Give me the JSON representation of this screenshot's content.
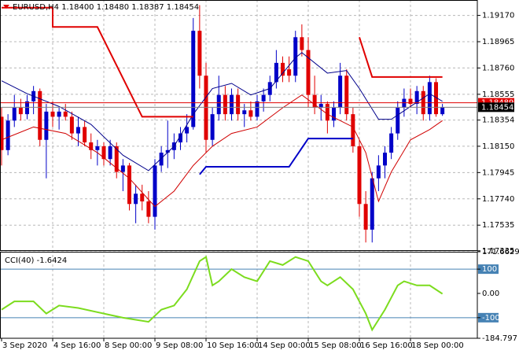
{
  "chart_data": [
    {
      "type": "candlestick",
      "title": "EURUSD,H4  1.18400 1.18480 1.18387 1.18454",
      "up_color": "#0000c8",
      "down_color": "#e00000",
      "categories": [
        "3 Sep 2020",
        null,
        null,
        null,
        null,
        null,
        null,
        null,
        "4 Sep 16:00",
        null,
        null,
        null,
        null,
        null,
        null,
        null,
        "8 Sep 00:00",
        null,
        null,
        null,
        null,
        null,
        null,
        null,
        "9 Sep 08:00",
        null,
        null,
        null,
        null,
        null,
        null,
        null,
        "10 Sep 16:00",
        null,
        null,
        null,
        null,
        null,
        null,
        null,
        "14 Sep 00:00",
        null,
        null,
        null,
        null,
        null,
        null,
        null,
        "15 Sep 08:00",
        null,
        null,
        null,
        null,
        null,
        null,
        null,
        "16 Sep 16:00",
        null,
        null,
        null,
        null,
        null,
        null,
        null,
        "18 Sep 00:00",
        null,
        null,
        null,
        null,
        null
      ],
      "ohlc": [
        [
          1.1838,
          1.1845,
          1.18,
          1.1812
        ],
        [
          1.1812,
          1.184,
          1.1808,
          1.1835
        ],
        [
          1.1835,
          1.1855,
          1.183,
          1.1845
        ],
        [
          1.1845,
          1.1852,
          1.1835,
          1.184
        ],
        [
          1.184,
          1.1855,
          1.1836,
          1.185
        ],
        [
          1.185,
          1.1862,
          1.184,
          1.1858
        ],
        [
          1.1858,
          1.186,
          1.1815,
          1.182
        ],
        [
          1.182,
          1.1848,
          1.179,
          1.1842
        ],
        [
          1.1842,
          1.185,
          1.183,
          1.1838
        ],
        [
          1.1838,
          1.1845,
          1.1828,
          1.1842
        ],
        [
          1.1842,
          1.1848,
          1.1835,
          1.1838
        ],
        [
          1.1838,
          1.1842,
          1.182,
          1.1825
        ],
        [
          1.1825,
          1.1838,
          1.1815,
          1.183
        ],
        [
          1.183,
          1.1835,
          1.1815,
          1.1818
        ],
        [
          1.1818,
          1.1825,
          1.1805,
          1.1812
        ],
        [
          1.1812,
          1.182,
          1.18,
          1.1815
        ],
        [
          1.1815,
          1.1818,
          1.18,
          1.1805
        ],
        [
          1.1805,
          1.182,
          1.18,
          1.1815
        ],
        [
          1.1815,
          1.1818,
          1.179,
          1.1795
        ],
        [
          1.1795,
          1.1805,
          1.178,
          1.18
        ],
        [
          1.18,
          1.1802,
          1.1765,
          1.177
        ],
        [
          1.177,
          1.1785,
          1.1755,
          1.1778
        ],
        [
          1.1778,
          1.1785,
          1.1765,
          1.1772
        ],
        [
          1.1772,
          1.178,
          1.1755,
          1.176
        ],
        [
          1.176,
          1.1805,
          1.175,
          1.18
        ],
        [
          1.18,
          1.1815,
          1.1795,
          1.181
        ],
        [
          1.181,
          1.1835,
          1.1798,
          1.1812
        ],
        [
          1.1812,
          1.1825,
          1.1805,
          1.1818
        ],
        [
          1.1818,
          1.183,
          1.1812,
          1.1825
        ],
        [
          1.1825,
          1.184,
          1.1818,
          1.183
        ],
        [
          1.183,
          1.1915,
          1.1828,
          1.1905
        ],
        [
          1.1905,
          1.1925,
          1.186,
          1.187
        ],
        [
          1.187,
          1.188,
          1.181,
          1.182
        ],
        [
          1.182,
          1.1845,
          1.1815,
          1.184
        ],
        [
          1.184,
          1.187,
          1.1835,
          1.1855
        ],
        [
          1.1855,
          1.1862,
          1.1835,
          1.184
        ],
        [
          1.184,
          1.186,
          1.1835,
          1.1855
        ],
        [
          1.1855,
          1.186,
          1.1835,
          1.184
        ],
        [
          1.184,
          1.1848,
          1.183,
          1.1843
        ],
        [
          1.1843,
          1.185,
          1.1835,
          1.1838
        ],
        [
          1.1838,
          1.1855,
          1.1835,
          1.185
        ],
        [
          1.185,
          1.186,
          1.1842,
          1.1855
        ],
        [
          1.1855,
          1.187,
          1.185,
          1.1865
        ],
        [
          1.1865,
          1.189,
          1.186,
          1.188
        ],
        [
          1.188,
          1.1885,
          1.1865,
          1.187
        ],
        [
          1.1875,
          1.1885,
          1.1865,
          1.187
        ],
        [
          1.187,
          1.1905,
          1.1865,
          1.19
        ],
        [
          1.19,
          1.191,
          1.1885,
          1.189
        ],
        [
          1.189,
          1.19,
          1.1845,
          1.1855
        ],
        [
          1.1855,
          1.187,
          1.184,
          1.1845
        ],
        [
          1.1845,
          1.1855,
          1.1835,
          1.1848
        ],
        [
          1.1848,
          1.185,
          1.1825,
          1.1835
        ],
        [
          1.1835,
          1.185,
          1.183,
          1.1845
        ],
        [
          1.1845,
          1.188,
          1.184,
          1.187
        ],
        [
          1.187,
          1.1875,
          1.1835,
          1.184
        ],
        [
          1.184,
          1.1845,
          1.181,
          1.1815
        ],
        [
          1.1815,
          1.182,
          1.176,
          1.177
        ],
        [
          1.177,
          1.178,
          1.174,
          1.175
        ],
        [
          1.175,
          1.1795,
          1.174,
          1.179
        ],
        [
          1.179,
          1.1808,
          1.178,
          1.18
        ],
        [
          1.18,
          1.1815,
          1.179,
          1.181
        ],
        [
          1.181,
          1.183,
          1.1805,
          1.1825
        ],
        [
          1.1825,
          1.185,
          1.182,
          1.1845
        ],
        [
          1.1845,
          1.186,
          1.1838,
          1.1852
        ],
        [
          1.1852,
          1.186,
          1.1845,
          1.1848
        ],
        [
          1.1848,
          1.1862,
          1.184,
          1.1858
        ],
        [
          1.1858,
          1.1862,
          1.1835,
          1.184
        ],
        [
          1.184,
          1.187,
          1.1835,
          1.1865
        ],
        [
          1.1865,
          1.1868,
          1.1838,
          1.184
        ],
        [
          1.184,
          1.1848,
          1.18387,
          1.18454
        ]
      ],
      "overlays": [
        {
          "color": "#00008b",
          "x": [
            0,
            4,
            9,
            14,
            19,
            23,
            27,
            30,
            33,
            36,
            39,
            42,
            46,
            47,
            51,
            54,
            56,
            59,
            61,
            64,
            67,
            69
          ],
          "values": [
            1.1866,
            1.1856,
            1.1846,
            1.1832,
            1.1808,
            1.1796,
            1.1815,
            1.184,
            1.186,
            1.1864,
            1.1855,
            1.186,
            1.1884,
            1.1888,
            1.1872,
            1.1874,
            1.186,
            1.1836,
            1.1836,
            1.1846,
            1.1856,
            1.185
          ]
        },
        {
          "color": "#d00000",
          "x": [
            0,
            5,
            10,
            15,
            20,
            24,
            27,
            30,
            33,
            36,
            40,
            44,
            47,
            51,
            55,
            57,
            59,
            61,
            64,
            67,
            69
          ],
          "values": [
            1.182,
            1.183,
            1.1825,
            1.181,
            1.179,
            1.1768,
            1.178,
            1.18,
            1.1815,
            1.1825,
            1.183,
            1.1845,
            1.1855,
            1.184,
            1.183,
            1.181,
            1.1772,
            1.1795,
            1.182,
            1.1828,
            1.1835
          ]
        },
        {
          "color": "#e00000",
          "width": 2,
          "x": [
            0,
            8,
            8,
            15,
            22,
            30
          ],
          "values": [
            1.1923,
            1.1923,
            1.1908,
            1.1908,
            1.1838,
            1.1838
          ]
        },
        {
          "color": "#e00000",
          "width": 2,
          "x": [
            56,
            58,
            69
          ],
          "values": [
            1.19,
            1.1869,
            1.1869
          ]
        },
        {
          "color": "#0000c8",
          "width": 2,
          "x": [
            31,
            32,
            45,
            48,
            55
          ],
          "values": [
            1.1793,
            1.1799,
            1.1799,
            1.1821,
            1.1821
          ]
        }
      ],
      "price_lines": [
        {
          "value": 1.18489,
          "color": "#e00000"
        },
        {
          "value": 1.18454,
          "color": "#808080"
        }
      ],
      "ylim": [
        1.1734,
        1.1929
      ],
      "yticks": [
        {
          "value": 1.1917,
          "label": "1.19170"
        },
        1.18965,
        {
          "value": 1.1876,
          "label": "1.18760"
        },
        1.18555,
        1.18354,
        {
          "value": 1.1815,
          "label": "1.18150"
        },
        1.17945,
        {
          "value": 1.1774,
          "label": "1.17740"
        },
        1.17535,
        1.17335
      ],
      "grid": true
    },
    {
      "type": "line",
      "title": "CCI(40) -1.6424",
      "color": "#7cdc1e",
      "x": [
        0,
        2,
        5,
        7,
        9,
        12,
        16,
        19,
        23,
        25,
        27,
        29,
        31,
        32,
        33,
        34,
        36,
        38,
        40,
        42,
        44,
        46,
        48,
        50,
        51,
        53,
        55,
        57,
        58,
        60,
        62,
        63,
        65,
        67,
        69
      ],
      "values": [
        -67,
        -33,
        -33,
        -83,
        -50,
        -60,
        -83,
        -100,
        -117,
        -67,
        -50,
        17,
        133,
        150,
        33,
        50,
        100,
        67,
        50,
        133,
        117,
        150,
        133,
        50,
        33,
        67,
        17,
        -83,
        -150,
        -67,
        33,
        50,
        33,
        33,
        -1.6424
      ],
      "levels": [
        100,
        -100
      ],
      "level_color": "#4682b4",
      "ylim": [
        -184.797,
        171.6629
      ],
      "yticks": [
        171.6629,
        100,
        {
          "value": 0,
          "label": "0.00"
        },
        -100,
        -184.797
      ]
    }
  ]
}
